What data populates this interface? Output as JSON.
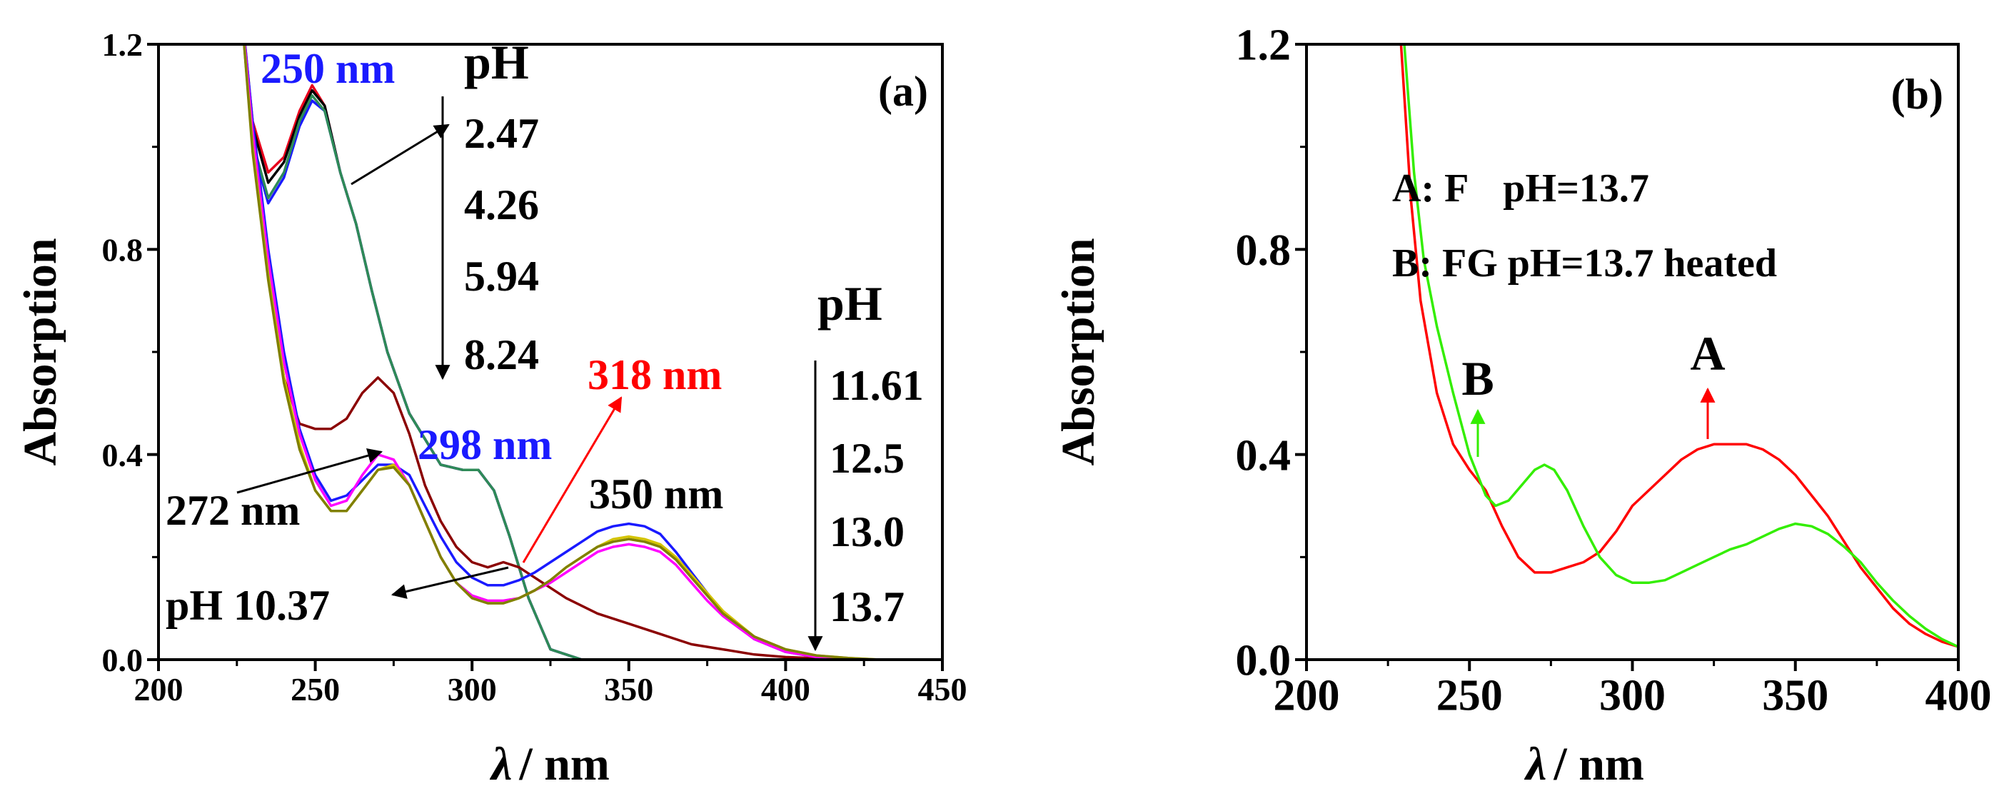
{
  "chart_data": [
    {
      "id": "a",
      "type": "line",
      "panel_label": "(a)",
      "xlabel_symbol": "λ",
      "xlabel_unit": "/ nm",
      "ylabel": "Absorption",
      "xlim": [
        200,
        450
      ],
      "ylim": [
        0.0,
        1.2
      ],
      "xticks": [
        200,
        250,
        300,
        350,
        400,
        450
      ],
      "xtick_labels": [
        "200",
        "250",
        "300",
        "350",
        "400",
        "450"
      ],
      "yticks": [
        0.0,
        0.4,
        0.8,
        1.2
      ],
      "ytick_labels": [
        "0.0",
        "0.4",
        "0.8",
        "1.2"
      ],
      "series": [
        {
          "name": "pH 2.47",
          "color": "#e8001c",
          "x": [
            226,
            230,
            235,
            240,
            245,
            249,
            253,
            258,
            263,
            268,
            273,
            280,
            290,
            297,
            302,
            307,
            312,
            318,
            325,
            335,
            345,
            350,
            360,
            370,
            380,
            390,
            400,
            410,
            420,
            430,
            450
          ],
          "y": [
            1.3,
            1.05,
            0.95,
            0.98,
            1.07,
            1.12,
            1.08,
            0.95,
            0.85,
            0.72,
            0.6,
            0.48,
            0.38,
            0.37,
            0.37,
            0.33,
            0.24,
            0.12,
            0.02,
            0.0,
            0.0,
            0.0,
            0.0,
            0.0,
            0.0,
            0.0,
            0.0,
            0.0,
            0.0,
            0.0,
            0.0
          ]
        },
        {
          "name": "pH 4.26",
          "color": "#000000",
          "x": [
            226,
            230,
            235,
            240,
            245,
            249,
            253,
            258,
            263,
            268,
            273,
            280,
            290,
            297,
            302,
            307,
            312,
            318,
            325,
            335,
            345,
            350,
            360,
            370,
            380,
            390,
            400,
            410,
            420,
            430,
            450
          ],
          "y": [
            1.3,
            1.04,
            0.93,
            0.97,
            1.06,
            1.11,
            1.08,
            0.95,
            0.85,
            0.72,
            0.6,
            0.48,
            0.38,
            0.37,
            0.37,
            0.33,
            0.24,
            0.12,
            0.02,
            0.0,
            0.0,
            0.0,
            0.0,
            0.0,
            0.0,
            0.0,
            0.0,
            0.0,
            0.0,
            0.0,
            0.0
          ]
        },
        {
          "name": "pH 5.94",
          "color": "#1a1aff",
          "x": [
            226,
            230,
            235,
            240,
            245,
            249,
            253,
            258,
            263,
            268,
            273,
            280,
            290,
            297,
            302,
            307,
            312,
            318,
            325,
            335,
            345,
            350,
            360,
            370,
            380,
            390,
            400,
            410,
            420,
            430,
            450
          ],
          "y": [
            1.3,
            1.0,
            0.89,
            0.94,
            1.04,
            1.09,
            1.07,
            0.95,
            0.85,
            0.72,
            0.6,
            0.48,
            0.38,
            0.37,
            0.37,
            0.33,
            0.24,
            0.12,
            0.02,
            0.0,
            0.0,
            0.0,
            0.0,
            0.0,
            0.0,
            0.0,
            0.0,
            0.0,
            0.0,
            0.0,
            0.0
          ]
        },
        {
          "name": "pH 8.24",
          "color": "#2e8b57",
          "x": [
            226,
            230,
            235,
            240,
            245,
            249,
            253,
            258,
            263,
            268,
            273,
            280,
            290,
            297,
            302,
            307,
            312,
            318,
            325,
            335,
            345,
            350,
            360,
            370,
            380,
            390,
            400,
            410,
            420,
            430,
            450
          ],
          "y": [
            1.3,
            1.01,
            0.9,
            0.95,
            1.05,
            1.1,
            1.07,
            0.95,
            0.85,
            0.72,
            0.6,
            0.48,
            0.38,
            0.37,
            0.37,
            0.33,
            0.24,
            0.12,
            0.02,
            0.0,
            0.0,
            0.0,
            0.0,
            0.0,
            0.0,
            0.0,
            0.0,
            0.0,
            0.0,
            0.0,
            0.0
          ]
        },
        {
          "name": "pH 10.37",
          "color": "#8b0000",
          "x": [
            226,
            230,
            235,
            240,
            245,
            250,
            255,
            260,
            265,
            270,
            275,
            280,
            285,
            290,
            295,
            300,
            305,
            310,
            315,
            320,
            330,
            340,
            350,
            360,
            370,
            380,
            390,
            400,
            420,
            450
          ],
          "y": [
            1.3,
            1.0,
            0.75,
            0.55,
            0.46,
            0.45,
            0.45,
            0.47,
            0.52,
            0.55,
            0.52,
            0.44,
            0.34,
            0.27,
            0.22,
            0.19,
            0.18,
            0.19,
            0.18,
            0.16,
            0.12,
            0.09,
            0.07,
            0.05,
            0.03,
            0.02,
            0.01,
            0.005,
            0.0,
            0.0
          ]
        },
        {
          "name": "pH 11.61",
          "color": "#1a1aff",
          "x": [
            226,
            230,
            235,
            240,
            245,
            250,
            255,
            260,
            265,
            270,
            275,
            280,
            285,
            290,
            295,
            300,
            305,
            310,
            315,
            320,
            325,
            330,
            335,
            340,
            345,
            350,
            355,
            360,
            365,
            370,
            375,
            380,
            390,
            400,
            410,
            420,
            430,
            450
          ],
          "y": [
            1.3,
            1.05,
            0.8,
            0.6,
            0.45,
            0.36,
            0.31,
            0.32,
            0.35,
            0.38,
            0.38,
            0.36,
            0.3,
            0.24,
            0.19,
            0.16,
            0.145,
            0.145,
            0.155,
            0.17,
            0.19,
            0.21,
            0.23,
            0.25,
            0.26,
            0.265,
            0.26,
            0.245,
            0.21,
            0.17,
            0.13,
            0.09,
            0.04,
            0.015,
            0.005,
            0.0,
            0.0,
            0.0
          ]
        },
        {
          "name": "pH 12.5",
          "color": "#ff00ff",
          "x": [
            226,
            230,
            235,
            240,
            245,
            250,
            255,
            260,
            265,
            270,
            275,
            280,
            285,
            290,
            295,
            300,
            305,
            310,
            315,
            320,
            325,
            330,
            335,
            340,
            345,
            350,
            355,
            360,
            365,
            370,
            375,
            380,
            390,
            400,
            410,
            420,
            430,
            450
          ],
          "y": [
            1.3,
            1.03,
            0.78,
            0.58,
            0.44,
            0.35,
            0.3,
            0.31,
            0.36,
            0.4,
            0.39,
            0.34,
            0.27,
            0.2,
            0.15,
            0.125,
            0.115,
            0.115,
            0.12,
            0.135,
            0.15,
            0.17,
            0.19,
            0.21,
            0.22,
            0.225,
            0.22,
            0.21,
            0.185,
            0.15,
            0.115,
            0.085,
            0.04,
            0.015,
            0.005,
            0.0,
            0.0,
            0.0
          ]
        },
        {
          "name": "pH 13.0",
          "color": "#d4c400",
          "x": [
            226,
            230,
            235,
            240,
            245,
            250,
            255,
            260,
            265,
            270,
            275,
            280,
            285,
            290,
            295,
            300,
            305,
            310,
            315,
            320,
            325,
            330,
            335,
            340,
            345,
            350,
            355,
            360,
            365,
            370,
            375,
            380,
            390,
            400,
            410,
            420,
            430,
            450
          ],
          "y": [
            1.3,
            1.0,
            0.75,
            0.55,
            0.42,
            0.33,
            0.29,
            0.29,
            0.33,
            0.37,
            0.38,
            0.34,
            0.27,
            0.2,
            0.15,
            0.12,
            0.11,
            0.11,
            0.12,
            0.135,
            0.155,
            0.18,
            0.2,
            0.22,
            0.235,
            0.24,
            0.235,
            0.225,
            0.2,
            0.165,
            0.13,
            0.095,
            0.045,
            0.02,
            0.008,
            0.003,
            0.0,
            0.0
          ]
        },
        {
          "name": "pH 13.7",
          "color": "#808000",
          "x": [
            226,
            230,
            235,
            240,
            245,
            250,
            255,
            260,
            265,
            270,
            275,
            280,
            285,
            290,
            295,
            300,
            305,
            310,
            315,
            320,
            325,
            330,
            335,
            340,
            345,
            350,
            355,
            360,
            365,
            370,
            375,
            380,
            390,
            400,
            410,
            420,
            430,
            450
          ],
          "y": [
            1.3,
            0.99,
            0.74,
            0.54,
            0.41,
            0.33,
            0.29,
            0.29,
            0.33,
            0.37,
            0.375,
            0.34,
            0.27,
            0.2,
            0.15,
            0.12,
            0.11,
            0.11,
            0.12,
            0.135,
            0.155,
            0.18,
            0.2,
            0.22,
            0.23,
            0.235,
            0.23,
            0.22,
            0.195,
            0.16,
            0.125,
            0.09,
            0.045,
            0.02,
            0.008,
            0.003,
            0.0,
            0.0
          ]
        }
      ],
      "annotations": {
        "peak_250": "250 nm",
        "peak_298": "298 nm",
        "peak_318": "318 nm",
        "peak_272": "272 nm",
        "peak_350": "350 nm",
        "ph_10": "pH 10.37",
        "ph_header_acid": "pH",
        "ph_acid_values": [
          "2.47",
          "4.26",
          "5.94",
          "8.24"
        ],
        "ph_header_base": "pH",
        "ph_base_values": [
          "11.61",
          "12.5",
          "13.0",
          "13.7"
        ]
      }
    },
    {
      "id": "b",
      "type": "line",
      "panel_label": "(b)",
      "xlabel_symbol": "λ",
      "xlabel_unit": "/ nm",
      "ylabel": "Absorption",
      "xlim": [
        200,
        400
      ],
      "ylim": [
        0.0,
        1.2
      ],
      "xticks": [
        200,
        250,
        300,
        350,
        400
      ],
      "xtick_labels": [
        "200",
        "250",
        "300",
        "350",
        "400"
      ],
      "yticks": [
        0.0,
        0.4,
        0.8,
        1.2
      ],
      "ytick_labels": [
        "0.0",
        "0.4",
        "0.8",
        "1.2"
      ],
      "series": [
        {
          "name": "A: F pH=13.7",
          "color": "#ff0000",
          "x": [
            229,
            232,
            235,
            240,
            245,
            250,
            255,
            260,
            265,
            270,
            275,
            280,
            285,
            290,
            295,
            300,
            305,
            310,
            315,
            320,
            325,
            330,
            335,
            340,
            345,
            350,
            355,
            360,
            365,
            370,
            375,
            380,
            385,
            390,
            395,
            400
          ],
          "y": [
            1.2,
            0.9,
            0.7,
            0.52,
            0.42,
            0.37,
            0.33,
            0.26,
            0.2,
            0.17,
            0.17,
            0.18,
            0.19,
            0.21,
            0.25,
            0.3,
            0.33,
            0.36,
            0.39,
            0.41,
            0.42,
            0.42,
            0.42,
            0.41,
            0.39,
            0.36,
            0.32,
            0.28,
            0.23,
            0.18,
            0.14,
            0.1,
            0.07,
            0.05,
            0.035,
            0.025
          ]
        },
        {
          "name": "B: FG pH=13.7 heated",
          "color": "#33ee00",
          "x": [
            230,
            233,
            236,
            240,
            245,
            250,
            255,
            258,
            262,
            266,
            270,
            273,
            276,
            280,
            285,
            290,
            295,
            300,
            305,
            310,
            315,
            320,
            325,
            330,
            335,
            340,
            345,
            350,
            355,
            360,
            365,
            370,
            375,
            380,
            385,
            390,
            395,
            400
          ],
          "y": [
            1.2,
            0.95,
            0.78,
            0.65,
            0.52,
            0.4,
            0.32,
            0.3,
            0.31,
            0.34,
            0.37,
            0.38,
            0.37,
            0.33,
            0.26,
            0.2,
            0.165,
            0.15,
            0.15,
            0.155,
            0.17,
            0.185,
            0.2,
            0.215,
            0.225,
            0.24,
            0.255,
            0.265,
            0.26,
            0.245,
            0.22,
            0.19,
            0.15,
            0.115,
            0.085,
            0.06,
            0.04,
            0.025
          ]
        }
      ],
      "annotations": {
        "legend_a_label": "A: F",
        "legend_a_ph": "pH=13.7",
        "legend_b": "B: FG pH=13.7 heated",
        "marker_a": "A",
        "marker_b": "B"
      }
    }
  ]
}
